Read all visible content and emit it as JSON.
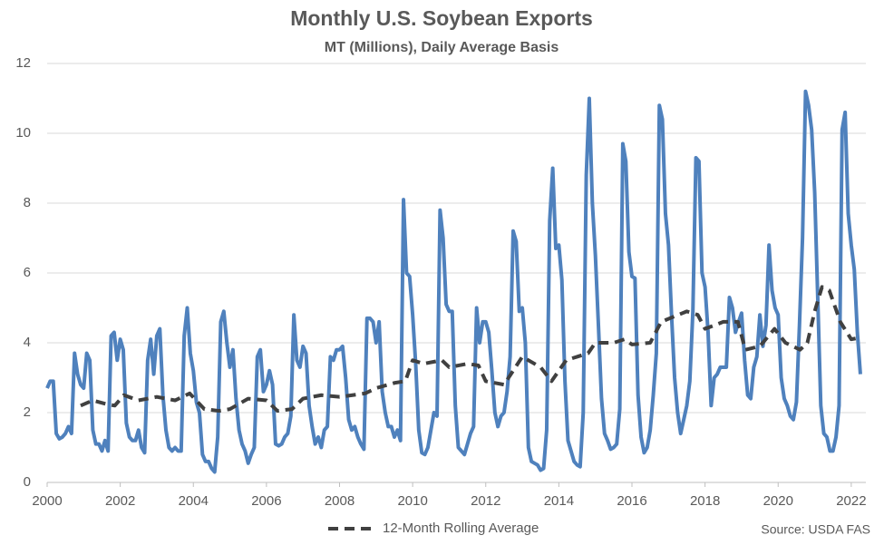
{
  "chart_data": {
    "type": "line",
    "title": "Monthly U.S. Soybean Exports",
    "subtitle": "MT (Millions), Daily Average Basis",
    "source": "Source: USDA FAS",
    "xlim": [
      2000,
      2022.4
    ],
    "xticks": [
      2000,
      2002,
      2004,
      2006,
      2008,
      2010,
      2012,
      2014,
      2016,
      2018,
      2020,
      2022
    ],
    "ylim": [
      0,
      12
    ],
    "yticks": [
      0,
      2,
      4,
      6,
      8,
      10,
      12
    ],
    "grid": true,
    "legend": "bottom",
    "series": [
      {
        "color": "#4f81bd",
        "dashed": false,
        "x": [
          2000,
          2000.083,
          2000.167,
          2000.25,
          2000.333,
          2000.417,
          2000.5,
          2000.583,
          2000.667,
          2000.75,
          2000.833,
          2000.917,
          2001,
          2001.083,
          2001.167,
          2001.25,
          2001.333,
          2001.417,
          2001.5,
          2001.583,
          2001.667,
          2001.75,
          2001.833,
          2001.917,
          2002,
          2002.083,
          2002.167,
          2002.25,
          2002.333,
          2002.417,
          2002.5,
          2002.583,
          2002.667,
          2002.75,
          2002.833,
          2002.917,
          2003,
          2003.083,
          2003.167,
          2003.25,
          2003.333,
          2003.417,
          2003.5,
          2003.583,
          2003.667,
          2003.75,
          2003.833,
          2003.917,
          2004,
          2004.083,
          2004.167,
          2004.25,
          2004.333,
          2004.417,
          2004.5,
          2004.583,
          2004.667,
          2004.75,
          2004.833,
          2004.917,
          2005,
          2005.083,
          2005.167,
          2005.25,
          2005.333,
          2005.417,
          2005.5,
          2005.583,
          2005.667,
          2005.75,
          2005.833,
          2005.917,
          2006,
          2006.083,
          2006.167,
          2006.25,
          2006.333,
          2006.417,
          2006.5,
          2006.583,
          2006.667,
          2006.75,
          2006.833,
          2006.917,
          2007,
          2007.083,
          2007.167,
          2007.25,
          2007.333,
          2007.417,
          2007.5,
          2007.583,
          2007.667,
          2007.75,
          2007.833,
          2007.917,
          2008,
          2008.083,
          2008.167,
          2008.25,
          2008.333,
          2008.417,
          2008.5,
          2008.583,
          2008.667,
          2008.75,
          2008.833,
          2008.917,
          2009,
          2009.083,
          2009.167,
          2009.25,
          2009.333,
          2009.417,
          2009.5,
          2009.583,
          2009.667,
          2009.75,
          2009.833,
          2009.917,
          2010,
          2010.083,
          2010.167,
          2010.25,
          2010.333,
          2010.417,
          2010.5,
          2010.583,
          2010.667,
          2010.75,
          2010.833,
          2010.917,
          2011,
          2011.083,
          2011.167,
          2011.25,
          2011.333,
          2011.417,
          2011.5,
          2011.583,
          2011.667,
          2011.75,
          2011.833,
          2011.917,
          2012,
          2012.083,
          2012.167,
          2012.25,
          2012.333,
          2012.417,
          2012.5,
          2012.583,
          2012.667,
          2012.75,
          2012.833,
          2012.917,
          2013,
          2013.083,
          2013.167,
          2013.25,
          2013.333,
          2013.417,
          2013.5,
          2013.583,
          2013.667,
          2013.75,
          2013.833,
          2013.917,
          2014,
          2014.083,
          2014.167,
          2014.25,
          2014.333,
          2014.417,
          2014.5,
          2014.583,
          2014.667,
          2014.75,
          2014.833,
          2014.917,
          2015,
          2015.083,
          2015.167,
          2015.25,
          2015.333,
          2015.417,
          2015.5,
          2015.583,
          2015.667,
          2015.75,
          2015.833,
          2015.917,
          2016,
          2016.083,
          2016.167,
          2016.25,
          2016.333,
          2016.417,
          2016.5,
          2016.583,
          2016.667,
          2016.75,
          2016.833,
          2016.917,
          2017,
          2017.083,
          2017.167,
          2017.25,
          2017.333,
          2017.417,
          2017.5,
          2017.583,
          2017.667,
          2017.75,
          2017.833,
          2017.917,
          2018,
          2018.083,
          2018.167,
          2018.25,
          2018.333,
          2018.417,
          2018.5,
          2018.583,
          2018.667,
          2018.75,
          2018.833,
          2018.917,
          2019,
          2019.083,
          2019.167,
          2019.25,
          2019.333,
          2019.417,
          2019.5,
          2019.583,
          2019.667,
          2019.75,
          2019.833,
          2019.917,
          2020,
          2020.083,
          2020.167,
          2020.25,
          2020.333,
          2020.417,
          2020.5,
          2020.583,
          2020.667,
          2020.75,
          2020.833,
          2020.917,
          2021,
          2021.083,
          2021.167,
          2021.25,
          2021.333,
          2021.417,
          2021.5,
          2021.583,
          2021.667,
          2021.75,
          2021.833,
          2021.917,
          2022,
          2022.083,
          2022.167,
          2022.25
        ],
        "values": [
          2.7,
          2.9,
          2.9,
          1.4,
          1.25,
          1.3,
          1.4,
          1.6,
          1.4,
          3.7,
          3.1,
          2.8,
          2.7,
          3.7,
          3.5,
          1.5,
          1.1,
          1.1,
          0.9,
          1.2,
          0.9,
          4.2,
          4.3,
          3.5,
          4.1,
          3.8,
          1.7,
          1.3,
          1.2,
          1.2,
          1.5,
          1.0,
          0.85,
          3.5,
          4.1,
          3.1,
          4.2,
          4.4,
          2.5,
          1.5,
          1.0,
          0.9,
          1.0,
          0.9,
          0.9,
          4.2,
          5.0,
          3.7,
          3.2,
          2.3,
          2.0,
          0.8,
          0.6,
          0.6,
          0.4,
          0.3,
          1.3,
          4.6,
          4.9,
          4.0,
          3.3,
          3.8,
          2.4,
          1.5,
          1.1,
          0.9,
          0.55,
          0.8,
          1.0,
          3.6,
          3.8,
          2.6,
          2.8,
          3.2,
          2.8,
          1.1,
          1.05,
          1.1,
          1.3,
          1.4,
          1.9,
          4.8,
          3.5,
          3.3,
          3.9,
          3.7,
          2.2,
          1.6,
          1.1,
          1.3,
          1.0,
          1.5,
          1.6,
          3.6,
          3.5,
          3.8,
          3.8,
          3.9,
          3.0,
          1.8,
          1.5,
          1.6,
          1.3,
          1.1,
          0.95,
          4.7,
          4.7,
          4.6,
          4.0,
          4.6,
          2.6,
          2.0,
          1.6,
          1.6,
          1.3,
          1.5,
          1.2,
          8.1,
          6.0,
          5.9,
          4.8,
          3.4,
          1.5,
          0.85,
          0.8,
          1.0,
          1.5,
          2.0,
          1.9,
          7.8,
          7.0,
          5.1,
          4.9,
          4.9,
          2.2,
          1.0,
          0.9,
          0.8,
          1.1,
          1.4,
          1.6,
          5.0,
          4.0,
          4.6,
          4.6,
          4.3,
          3.2,
          2.0,
          1.6,
          1.9,
          2.0,
          2.6,
          3.6,
          7.2,
          6.9,
          4.9,
          5.0,
          4.0,
          1.0,
          0.6,
          0.55,
          0.5,
          0.35,
          0.4,
          1.5,
          7.5,
          9.0,
          6.7,
          6.8,
          5.8,
          2.9,
          1.2,
          0.9,
          0.6,
          0.5,
          0.45,
          2.0,
          8.8,
          11.0,
          8.0,
          6.5,
          4.5,
          2.4,
          1.4,
          1.2,
          0.95,
          1.0,
          1.1,
          2.1,
          9.7,
          9.2,
          6.6,
          5.9,
          5.85,
          2.5,
          1.3,
          0.85,
          1.0,
          1.5,
          2.5,
          3.7,
          10.8,
          10.4,
          7.7,
          6.8,
          4.8,
          3.0,
          2.0,
          1.4,
          1.8,
          2.2,
          2.9,
          4.9,
          9.3,
          9.2,
          6.0,
          5.6,
          4.3,
          2.2,
          3.0,
          3.1,
          3.3,
          3.3,
          3.3,
          5.3,
          5.0,
          4.3,
          4.6,
          4.85,
          3.5,
          2.5,
          2.4,
          3.3,
          3.6,
          4.8,
          3.9,
          4.5,
          6.8,
          5.5,
          5.0,
          4.8,
          3.0,
          2.4,
          2.2,
          1.9,
          1.8,
          2.3,
          4.5,
          7.0,
          11.2,
          10.8,
          10.1,
          8.3,
          5.3,
          2.2,
          1.4,
          1.3,
          0.9,
          0.9,
          1.3,
          2.2,
          10.1,
          10.6,
          7.7,
          6.8,
          6.1,
          4.3,
          3.1
        ]
      },
      {
        "name": "12-Month Rolling Average",
        "color": "#404040",
        "dashed": true,
        "x": [
          2000.917,
          2001.25,
          2001.6,
          2001.85,
          2002.1,
          2002.5,
          2003,
          2003.5,
          2003.9,
          2004.3,
          2004.7,
          2005,
          2005.5,
          2006,
          2006.3,
          2006.7,
          2007,
          2007.5,
          2008,
          2008.7,
          2009,
          2009.5,
          2009.8,
          2010,
          2010.3,
          2010.8,
          2011,
          2011.5,
          2011.8,
          2012,
          2012.5,
          2013,
          2013.5,
          2013.8,
          2014.2,
          2014.8,
          2015,
          2015.5,
          2015.8,
          2016,
          2016.5,
          2016.8,
          2017.5,
          2017.8,
          2018,
          2018.5,
          2018.9,
          2019.1,
          2019.5,
          2019.9,
          2020.2,
          2020.6,
          2020.8,
          2021,
          2021.2,
          2021.4,
          2021.7,
          2022,
          2022.25
        ],
        "values": [
          2.2,
          2.35,
          2.25,
          2.2,
          2.5,
          2.35,
          2.45,
          2.35,
          2.55,
          2.1,
          2.05,
          2.1,
          2.4,
          2.35,
          2.05,
          2.1,
          2.4,
          2.5,
          2.45,
          2.55,
          2.7,
          2.85,
          2.9,
          3.5,
          3.4,
          3.5,
          3.3,
          3.4,
          3.35,
          2.9,
          2.8,
          3.6,
          3.3,
          2.9,
          3.5,
          3.7,
          4.0,
          4.0,
          4.1,
          3.95,
          4.0,
          4.6,
          4.9,
          4.8,
          4.4,
          4.6,
          4.6,
          3.8,
          3.9,
          4.4,
          4.0,
          3.8,
          4.0,
          4.9,
          5.6,
          5.5,
          4.6,
          4.1,
          4.15
        ]
      }
    ]
  }
}
